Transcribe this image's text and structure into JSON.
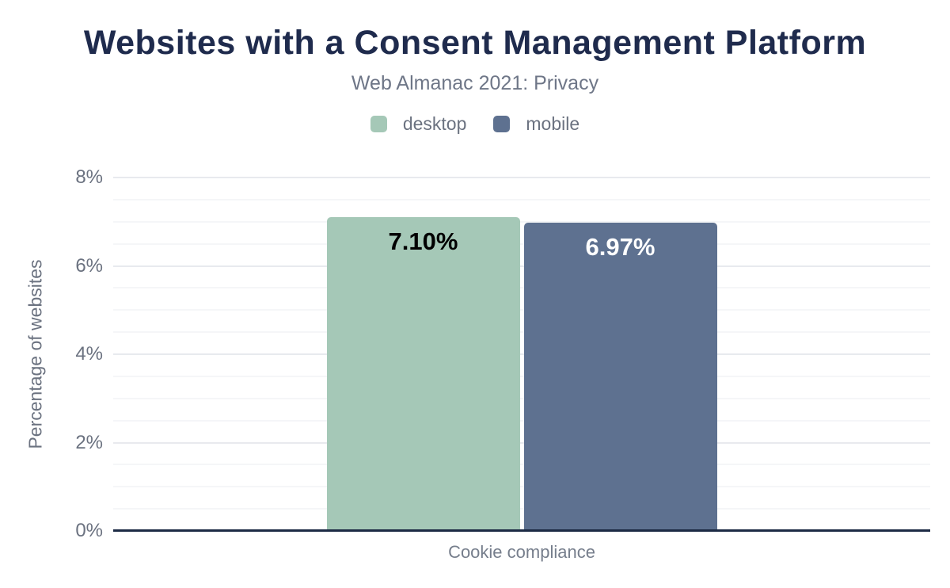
{
  "header": {
    "title": "Websites with a Consent Management Platform",
    "subtitle": "Web Almanac 2021: Privacy"
  },
  "legend": [
    {
      "label": "desktop",
      "color": "#a5c8b7"
    },
    {
      "label": "mobile",
      "color": "#5e7190"
    }
  ],
  "chart_data": {
    "type": "bar",
    "title": "Websites with a Consent Management Platform",
    "subtitle": "Web Almanac 2021: Privacy",
    "categories": [
      "Cookie compliance"
    ],
    "series": [
      {
        "name": "desktop",
        "values": [
          7.1
        ],
        "value_labels": [
          "7.10%"
        ],
        "color": "#a5c8b7",
        "label_color": "#000000"
      },
      {
        "name": "mobile",
        "values": [
          6.97
        ],
        "value_labels": [
          "6.97%"
        ],
        "color": "#5e7190",
        "label_color": "#ffffff"
      }
    ],
    "xlabel": "Cookie compliance",
    "ylabel": "Percentage of websites",
    "ylim": [
      0,
      8
    ],
    "ytick_step_major": 2,
    "ytick_step_minor": 0.5,
    "ytick_labels": [
      "0%",
      "2%",
      "4%",
      "6%",
      "8%"
    ],
    "grid": "horizontal",
    "legend_position": "top"
  },
  "colors": {
    "title": "#1f2b4d",
    "subtitle": "#6e7687",
    "axis_text": "#6b7280",
    "axis_line": "#1c2a44",
    "grid_major": "#e8eaee",
    "grid_minor": "#f5f6f8",
    "background": "#ffffff"
  }
}
